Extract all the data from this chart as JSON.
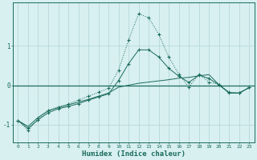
{
  "xlabel": "Humidex (Indice chaleur)",
  "bg_color": "#d8f0f0",
  "grid_color": "#b8d8d8",
  "line_color": "#1a6b5a",
  "xlim": [
    -0.5,
    23.5
  ],
  "ylim": [
    -1.45,
    2.1
  ],
  "yticks": [
    -1,
    0,
    1
  ],
  "xticks": [
    0,
    1,
    2,
    3,
    4,
    5,
    6,
    7,
    8,
    9,
    10,
    11,
    12,
    13,
    14,
    15,
    16,
    17,
    18,
    19,
    20,
    21,
    22,
    23
  ],
  "series1_x": [
    0,
    1,
    2,
    3,
    4,
    5,
    6,
    7,
    8,
    9,
    10,
    11,
    12,
    13,
    14,
    15,
    16,
    17,
    18,
    19,
    20,
    21,
    22,
    23
  ],
  "series1_y": [
    -0.9,
    -1.15,
    -0.85,
    -0.65,
    -0.55,
    -0.48,
    -0.38,
    -0.28,
    -0.18,
    -0.08,
    0.38,
    1.15,
    1.82,
    1.72,
    1.3,
    0.72,
    0.28,
    -0.05,
    0.28,
    0.08,
    0.02,
    -0.18,
    -0.2,
    -0.06
  ],
  "series2_x": [
    0,
    1,
    2,
    3,
    4,
    5,
    6,
    7,
    8,
    9,
    10,
    11,
    12,
    13,
    14,
    15,
    16,
    17,
    18,
    19,
    20,
    21,
    22,
    23
  ],
  "series2_y": [
    -0.9,
    -1.05,
    -0.82,
    -0.65,
    -0.57,
    -0.5,
    -0.43,
    -0.36,
    -0.28,
    -0.2,
    -0.05,
    0.0,
    0.05,
    0.08,
    0.11,
    0.14,
    0.18,
    0.2,
    0.24,
    0.27,
    0.01,
    -0.2,
    -0.2,
    -0.06
  ],
  "series3_x": [
    0,
    1,
    2,
    3,
    4,
    5,
    6,
    7,
    8,
    9,
    10,
    11,
    12,
    13,
    14,
    15,
    16,
    17,
    18,
    19,
    20,
    21,
    22,
    23
  ],
  "series3_y": [
    -0.9,
    -1.1,
    -0.88,
    -0.7,
    -0.6,
    -0.54,
    -0.47,
    -0.38,
    -0.3,
    -0.22,
    0.12,
    0.55,
    0.9,
    0.9,
    0.72,
    0.43,
    0.23,
    0.07,
    0.26,
    0.17,
    0.01,
    -0.19,
    -0.2,
    -0.06
  ]
}
